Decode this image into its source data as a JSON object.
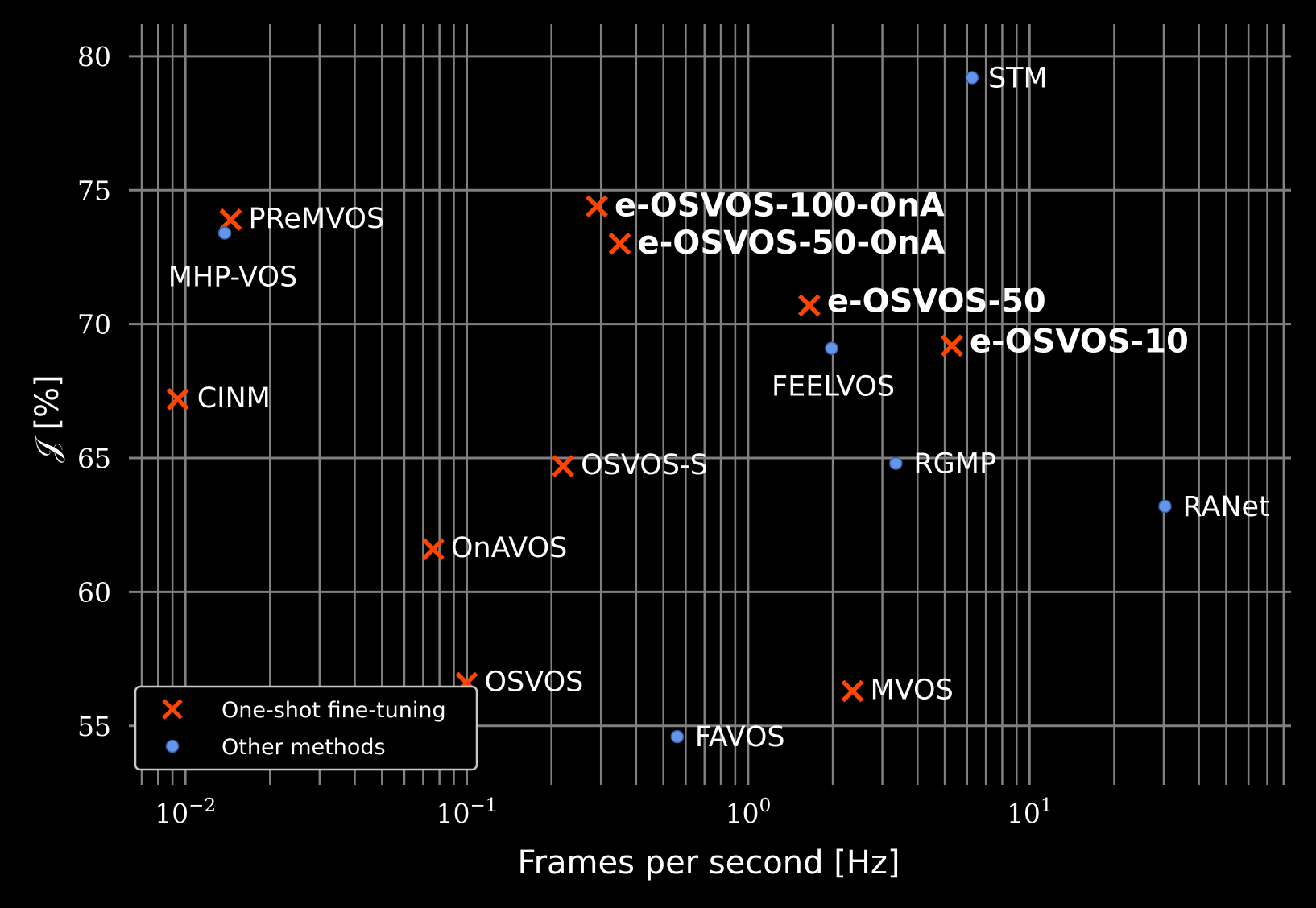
{
  "chart_data": {
    "type": "scatter",
    "xlabel": "Frames per second [Hz]",
    "ylabel": "𝒥 [%]",
    "xscale": "log",
    "xlim": [
      0.0063,
      85
    ],
    "ylim": [
      52.8,
      81.2
    ],
    "y_ticks": [
      "55",
      "60",
      "65",
      "70",
      "75",
      "80"
    ],
    "x_ticks": [
      {
        "base": "10",
        "exp": "−2"
      },
      {
        "base": "10",
        "exp": "−1"
      },
      {
        "base": "10",
        "exp": "0"
      },
      {
        "base": "10",
        "exp": "1"
      }
    ],
    "grid": true,
    "legend_position": "lower-left",
    "series": [
      {
        "name": "One-shot fine-tuning",
        "marker": "x",
        "color": "#ff4500",
        "points": [
          {
            "label": "PReMVOS",
            "x": 0.0145,
            "y": 73.9,
            "bold": false
          },
          {
            "label": "CINM",
            "x": 0.0094,
            "y": 67.2,
            "bold": false
          },
          {
            "label": "e-OSVOS-100-OnA",
            "x": 0.29,
            "y": 74.4,
            "bold": true
          },
          {
            "label": "e-OSVOS-50-OnA",
            "x": 0.35,
            "y": 73.0,
            "bold": true
          },
          {
            "label": "e-OSVOS-50",
            "x": 1.65,
            "y": 70.7,
            "bold": true
          },
          {
            "label": "e-OSVOS-10",
            "x": 5.3,
            "y": 69.2,
            "bold": true
          },
          {
            "label": "OSVOS-S",
            "x": 0.22,
            "y": 64.7,
            "bold": false
          },
          {
            "label": "OnAVOS",
            "x": 0.076,
            "y": 61.6,
            "bold": false
          },
          {
            "label": "OSVOS",
            "x": 0.1,
            "y": 56.6,
            "bold": false
          },
          {
            "label": "MVOS",
            "x": 2.35,
            "y": 56.3,
            "bold": false
          }
        ]
      },
      {
        "name": "Other methods",
        "marker": "o",
        "color": "#6495ed",
        "points": [
          {
            "label": "STM",
            "x": 6.25,
            "y": 79.2,
            "bold": false
          },
          {
            "label": "MHP-VOS",
            "x": 0.0138,
            "y": 73.4,
            "bold": false
          },
          {
            "label": "FEELVOS",
            "x": 1.98,
            "y": 69.1,
            "bold": false
          },
          {
            "label": "RGMP",
            "x": 3.35,
            "y": 64.8,
            "bold": false
          },
          {
            "label": "RANet",
            "x": 30.3,
            "y": 63.2,
            "bold": false
          },
          {
            "label": "FAVOS",
            "x": 0.56,
            "y": 54.6,
            "bold": false
          }
        ]
      }
    ]
  }
}
